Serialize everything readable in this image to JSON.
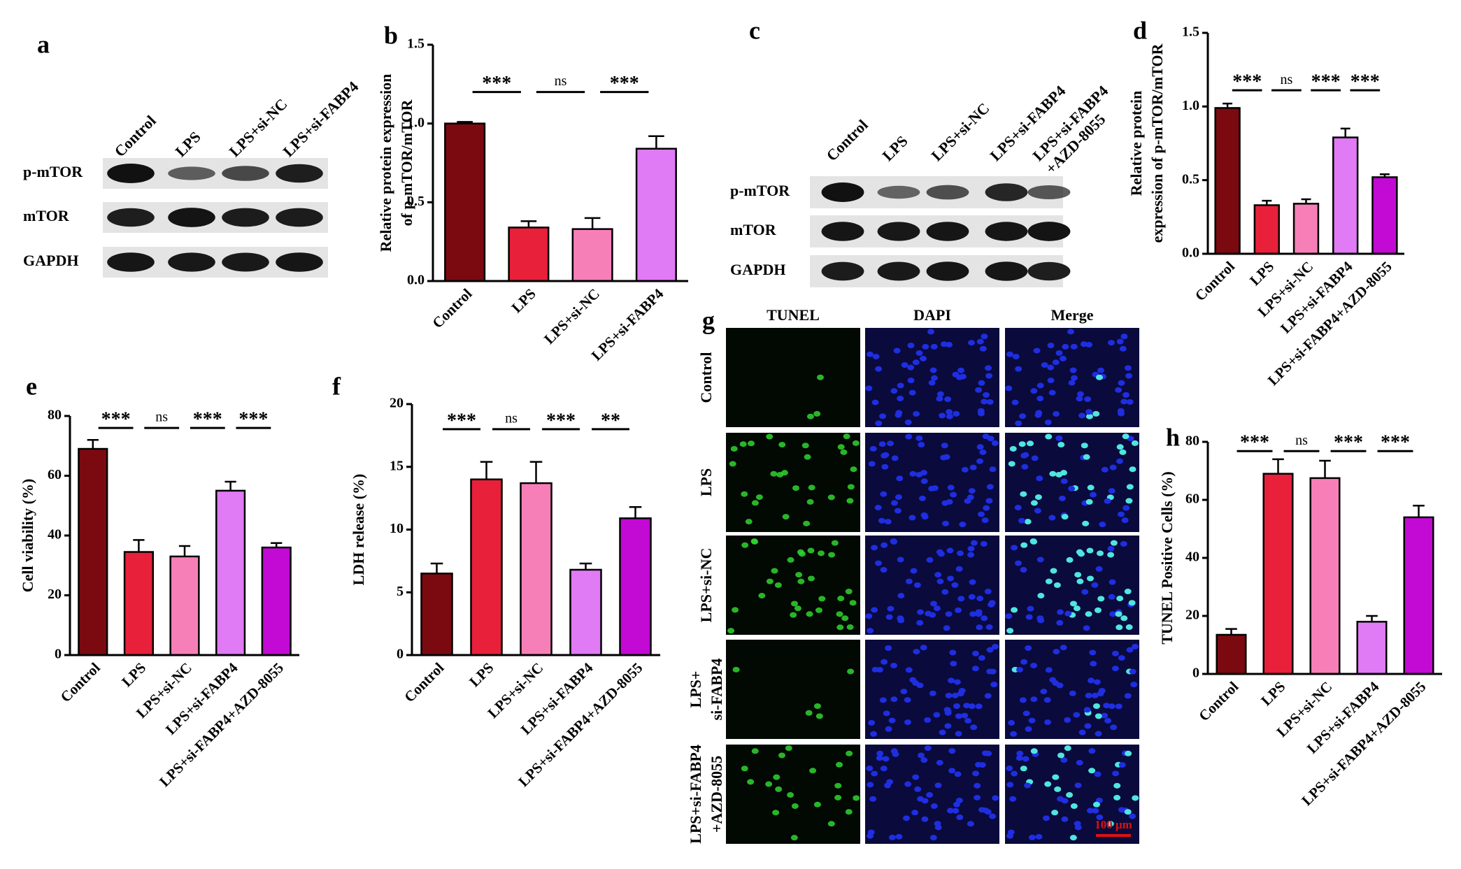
{
  "blots": [
    {
      "panel_label": "a",
      "lanes": [
        "Control",
        "LPS",
        "LPS+si-NC",
        "LPS+si-FABP4"
      ],
      "proteins": [
        "p-mTOR",
        "mTOR",
        "GAPDH"
      ]
    },
    {
      "panel_label": "c",
      "lanes": [
        "Control",
        "LPS",
        "LPS+si-NC",
        "LPS+si-FABP4",
        [
          "LPS+si-FABP4",
          "+AZD-8055"
        ]
      ],
      "proteins": [
        "p-mTOR",
        "mTOR",
        "GAPDH"
      ]
    }
  ],
  "chart_data": [
    {
      "type": "bar",
      "panel_label": "b",
      "ylabel": [
        "Relative protein expression",
        "of p-mTOR/mTOR"
      ],
      "categories": [
        "Control",
        "LPS",
        "LPS+si-NC",
        "LPS+si-FABP4"
      ],
      "values": [
        1.0,
        0.34,
        0.33,
        0.84
      ],
      "errors": [
        0.01,
        0.04,
        0.07,
        0.08
      ],
      "colors": [
        "#7b0a10",
        "#e8203a",
        "#f77fb8",
        "#e07af5"
      ],
      "ylim": [
        0,
        1.5
      ],
      "yticks": [
        {
          "value": 0,
          "label": "0.0"
        },
        {
          "value": 0.5,
          "label": "0.5"
        },
        {
          "value": 1,
          "label": "1.0"
        },
        {
          "value": 1.5,
          "label": "1.5"
        }
      ],
      "significance": [
        "***",
        "ns",
        "***"
      ]
    },
    {
      "type": "bar",
      "panel_label": "d",
      "ylabel": [
        "Relative protein",
        "expression of p-mTOR/mTOR"
      ],
      "categories": [
        "Control",
        "LPS",
        "LPS+si-NC",
        "LPS+si-FABP4",
        "LPS+si-FABP4+AZD-8055"
      ],
      "values": [
        0.99,
        0.33,
        0.34,
        0.79,
        0.52
      ],
      "errors": [
        0.03,
        0.03,
        0.03,
        0.06,
        0.02
      ],
      "colors": [
        "#7b0a10",
        "#e8203a",
        "#f77fb8",
        "#e07af5",
        "#c20ad4"
      ],
      "ylim": [
        0,
        1.5
      ],
      "yticks": [
        {
          "value": 0,
          "label": "0.0"
        },
        {
          "value": 0.5,
          "label": "0.5"
        },
        {
          "value": 1,
          "label": "1.0"
        },
        {
          "value": 1.5,
          "label": "1.5"
        }
      ],
      "significance": [
        "***",
        "ns",
        "***",
        "***"
      ]
    },
    {
      "type": "bar",
      "panel_label": "e",
      "ylabel": [
        "Cell viability (%)"
      ],
      "categories": [
        "Control",
        "LPS",
        "LPS+si-NC",
        "LPS+si-FABP4",
        "LPS+si-FABP4+AZD-8055"
      ],
      "values": [
        69,
        34.5,
        33,
        55,
        36
      ],
      "errors": [
        3,
        4,
        3.5,
        3,
        1.5
      ],
      "colors": [
        "#7b0a10",
        "#e8203a",
        "#f77fb8",
        "#e07af5",
        "#c20ad4"
      ],
      "ylim": [
        0,
        80
      ],
      "yticks": [
        0,
        20,
        40,
        60,
        80
      ],
      "significance": [
        "***",
        "ns",
        "***",
        "***"
      ]
    },
    {
      "type": "bar",
      "panel_label": "f",
      "ylabel": [
        "LDH release (%)"
      ],
      "categories": [
        "Control",
        "LPS",
        "LPS+si-NC",
        "LPS+si-FABP4",
        "LPS+si-FABP4+AZD-8055"
      ],
      "values": [
        6.5,
        14,
        13.7,
        6.8,
        10.9
      ],
      "errors": [
        0.8,
        1.4,
        1.7,
        0.5,
        0.9
      ],
      "colors": [
        "#7b0a10",
        "#e8203a",
        "#f77fb8",
        "#e07af5",
        "#c20ad4"
      ],
      "ylim": [
        0,
        20
      ],
      "yticks": [
        0,
        5,
        10,
        15,
        20
      ],
      "significance": [
        "***",
        "ns",
        "***",
        "**"
      ]
    },
    {
      "type": "bar",
      "panel_label": "h",
      "ylabel": [
        "TUNEL Positive Cells (%)"
      ],
      "categories": [
        "Control",
        "LPS",
        "LPS+si-NC",
        "LPS+si-FABP4",
        "LPS+si-FABP4+AZD-8055"
      ],
      "values": [
        13.5,
        69,
        67.5,
        18,
        54
      ],
      "errors": [
        2,
        5,
        6,
        2,
        4
      ],
      "colors": [
        "#7b0a10",
        "#e8203a",
        "#f77fb8",
        "#e07af5",
        "#c20ad4"
      ],
      "ylim": [
        0,
        80
      ],
      "yticks": [
        0,
        20,
        40,
        60,
        80
      ],
      "significance": [
        "***",
        "ns",
        "***",
        "***"
      ]
    }
  ],
  "microscopy": {
    "panel_label": "g",
    "stains": [
      "TUNEL",
      "DAPI",
      "Merge"
    ],
    "groups": [
      "Control",
      "LPS",
      "LPS+si-NC",
      [
        "LPS+",
        "si-FABP4"
      ],
      [
        "LPS+si-FABP4",
        "+AZD-8055"
      ]
    ],
    "scale_bar": "100 μm"
  }
}
